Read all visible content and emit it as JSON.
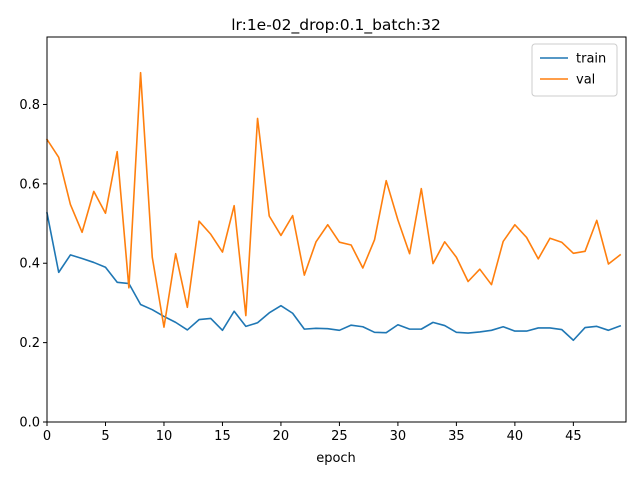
{
  "chart_data": {
    "type": "line",
    "title": "lr:1e-02_drop:0.1_batch:32",
    "xlabel": "epoch",
    "ylabel": "",
    "xlim": [
      0,
      49.5
    ],
    "ylim": [
      0.0,
      0.97
    ],
    "xticks": [
      0,
      5,
      10,
      15,
      20,
      25,
      30,
      35,
      40,
      45
    ],
    "yticks": [
      0.0,
      0.2,
      0.4,
      0.6,
      0.8
    ],
    "ytick_labels": [
      "0.0",
      "0.2",
      "0.4",
      "0.6",
      "0.8"
    ],
    "grid": false,
    "legend_position": "top-right",
    "x": [
      0,
      1,
      2,
      3,
      4,
      5,
      6,
      7,
      8,
      9,
      10,
      11,
      12,
      13,
      14,
      15,
      16,
      17,
      18,
      19,
      20,
      21,
      22,
      23,
      24,
      25,
      26,
      27,
      28,
      29,
      30,
      31,
      32,
      33,
      34,
      35,
      36,
      37,
      38,
      39,
      40,
      41,
      42,
      43,
      44,
      45,
      46,
      47,
      48,
      49
    ],
    "series": [
      {
        "name": "train",
        "color": "#1f77b4",
        "values": [
          0.527,
          0.377,
          0.421,
          0.412,
          0.402,
          0.39,
          0.352,
          0.349,
          0.296,
          0.283,
          0.266,
          0.251,
          0.232,
          0.258,
          0.261,
          0.231,
          0.279,
          0.241,
          0.25,
          0.275,
          0.293,
          0.274,
          0.234,
          0.236,
          0.235,
          0.231,
          0.244,
          0.24,
          0.226,
          0.225,
          0.245,
          0.234,
          0.234,
          0.251,
          0.243,
          0.226,
          0.224,
          0.227,
          0.231,
          0.24,
          0.229,
          0.229,
          0.237,
          0.237,
          0.233,
          0.206,
          0.238,
          0.241,
          0.231,
          0.242
        ]
      },
      {
        "name": "val",
        "color": "#ff7f0e",
        "values": [
          0.712,
          0.667,
          0.548,
          0.478,
          0.581,
          0.526,
          0.681,
          0.338,
          0.88,
          0.415,
          0.239,
          0.424,
          0.289,
          0.506,
          0.473,
          0.428,
          0.545,
          0.268,
          0.765,
          0.519,
          0.47,
          0.52,
          0.37,
          0.454,
          0.497,
          0.453,
          0.446,
          0.388,
          0.459,
          0.608,
          0.509,
          0.424,
          0.588,
          0.399,
          0.454,
          0.415,
          0.354,
          0.385,
          0.346,
          0.455,
          0.497,
          0.465,
          0.411,
          0.463,
          0.453,
          0.425,
          0.43,
          0.508,
          0.398,
          0.421
        ]
      }
    ]
  }
}
